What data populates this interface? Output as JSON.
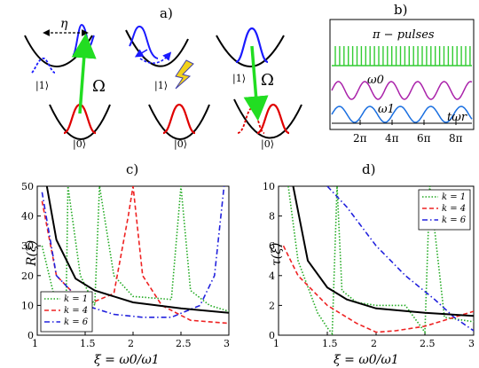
{
  "panel_a": {
    "label": "a)",
    "eta": "η",
    "omega_left": "Ω",
    "omega_right": "Ω",
    "ket1_left": "|1⟩",
    "ket0_left": "|0⟩",
    "ket1_mid": "|1⟩",
    "ket0_mid": "|0⟩",
    "ket1_right": "|1⟩",
    "ket0_right": "|0⟩",
    "colors": {
      "excited": "#1a1aff",
      "ground": "#e00000",
      "laser": "#22dd22",
      "bolt": "#f2d21b"
    }
  },
  "panel_b": {
    "label": "b)",
    "pulses_label": "π − pulses",
    "omega0_label": "ω0",
    "omega1_label": "ω1",
    "time_label": "tωr",
    "ticks": [
      "2π",
      "4π",
      "6π",
      "8π"
    ],
    "colors": {
      "pulses": "#33cc33",
      "omega0": "#aa22aa",
      "omega1": "#1a6fe0"
    }
  },
  "chart_data": [
    {
      "type": "line",
      "panel": "c)",
      "xlabel": "ξ = ω0/ω1",
      "ylabel": "R(ξ)",
      "xlim": [
        1,
        3
      ],
      "ylim": [
        0,
        50
      ],
      "xticks": [
        "1",
        "1.5",
        "2",
        "2.5",
        "3"
      ],
      "yticks": [
        "0",
        "10",
        "20",
        "30",
        "40",
        "50"
      ],
      "legend": "bottom-left",
      "series": [
        {
          "name": "k = 1",
          "style": "dotted",
          "color": "#22aa22",
          "x": [
            1.05,
            1.2,
            1.3,
            1.32,
            1.45,
            1.6,
            1.65,
            1.8,
            2.0,
            2.4,
            2.5,
            2.6,
            2.8,
            3.0
          ],
          "y": [
            30,
            10,
            8,
            50,
            20,
            10,
            50,
            20,
            13,
            12,
            50,
            15,
            10,
            8
          ]
        },
        {
          "name": "k = 4",
          "style": "dashed",
          "color": "#ee2222",
          "x": [
            1.05,
            1.2,
            1.5,
            1.8,
            1.95,
            2.0,
            2.1,
            2.3,
            2.6,
            3.0
          ],
          "y": [
            45,
            20,
            10,
            14,
            40,
            50,
            20,
            10,
            5,
            4
          ]
        },
        {
          "name": "k = 6",
          "style": "dash-dot",
          "color": "#2222dd",
          "x": [
            1.05,
            1.2,
            1.5,
            1.8,
            2.1,
            2.4,
            2.7,
            2.85,
            2.95
          ],
          "y": [
            48,
            20,
            10,
            7,
            6,
            6,
            10,
            20,
            50
          ]
        },
        {
          "name": "",
          "style": "solid",
          "color": "#000000",
          "x": [
            1.1,
            1.2,
            1.4,
            1.6,
            2.0,
            2.5,
            3.0
          ],
          "y": [
            50,
            32,
            19,
            15,
            11,
            9,
            7.5
          ]
        }
      ]
    },
    {
      "type": "line",
      "panel": "d)",
      "xlabel": "ξ = ω0/ω1",
      "ylabel": "τ(ξ)",
      "xlim": [
        1,
        3
      ],
      "ylim": [
        0,
        10
      ],
      "xticks": [
        "1",
        "1.5",
        "2",
        "2.5",
        "3"
      ],
      "yticks": [
        "0",
        "2",
        "4",
        "6",
        "8",
        "10"
      ],
      "legend": "top-right",
      "series": [
        {
          "name": "k = 1",
          "style": "dotted",
          "color": "#22aa22",
          "x": [
            1.1,
            1.2,
            1.4,
            1.5,
            1.55,
            1.6,
            1.65,
            1.8,
            2.0,
            2.3,
            2.5,
            2.55,
            2.7,
            3.0
          ],
          "y": [
            10,
            5,
            1.5,
            0.5,
            0.1,
            10,
            3,
            2.2,
            2,
            2,
            0.2,
            10,
            1.2,
            0.9
          ]
        },
        {
          "name": "k = 4",
          "style": "dashed",
          "color": "#ee2222",
          "x": [
            1.05,
            1.2,
            1.5,
            1.8,
            2.0,
            2.2,
            2.5,
            2.8,
            3.0
          ],
          "y": [
            6,
            4,
            2,
            0.8,
            0.2,
            0.3,
            0.6,
            1.2,
            1.6
          ]
        },
        {
          "name": "k = 6",
          "style": "dash-dot",
          "color": "#2222dd",
          "x": [
            1.5,
            1.7,
            2.0,
            2.3,
            2.6,
            2.8,
            3.0
          ],
          "y": [
            10,
            8.6,
            6,
            4,
            2.4,
            1.2,
            0.3
          ]
        },
        {
          "name": "",
          "style": "solid",
          "color": "#000000",
          "x": [
            1.15,
            1.3,
            1.5,
            1.7,
            2.0,
            2.5,
            3.0
          ],
          "y": [
            10,
            5,
            3.2,
            2.4,
            1.8,
            1.5,
            1.3
          ]
        }
      ]
    }
  ]
}
